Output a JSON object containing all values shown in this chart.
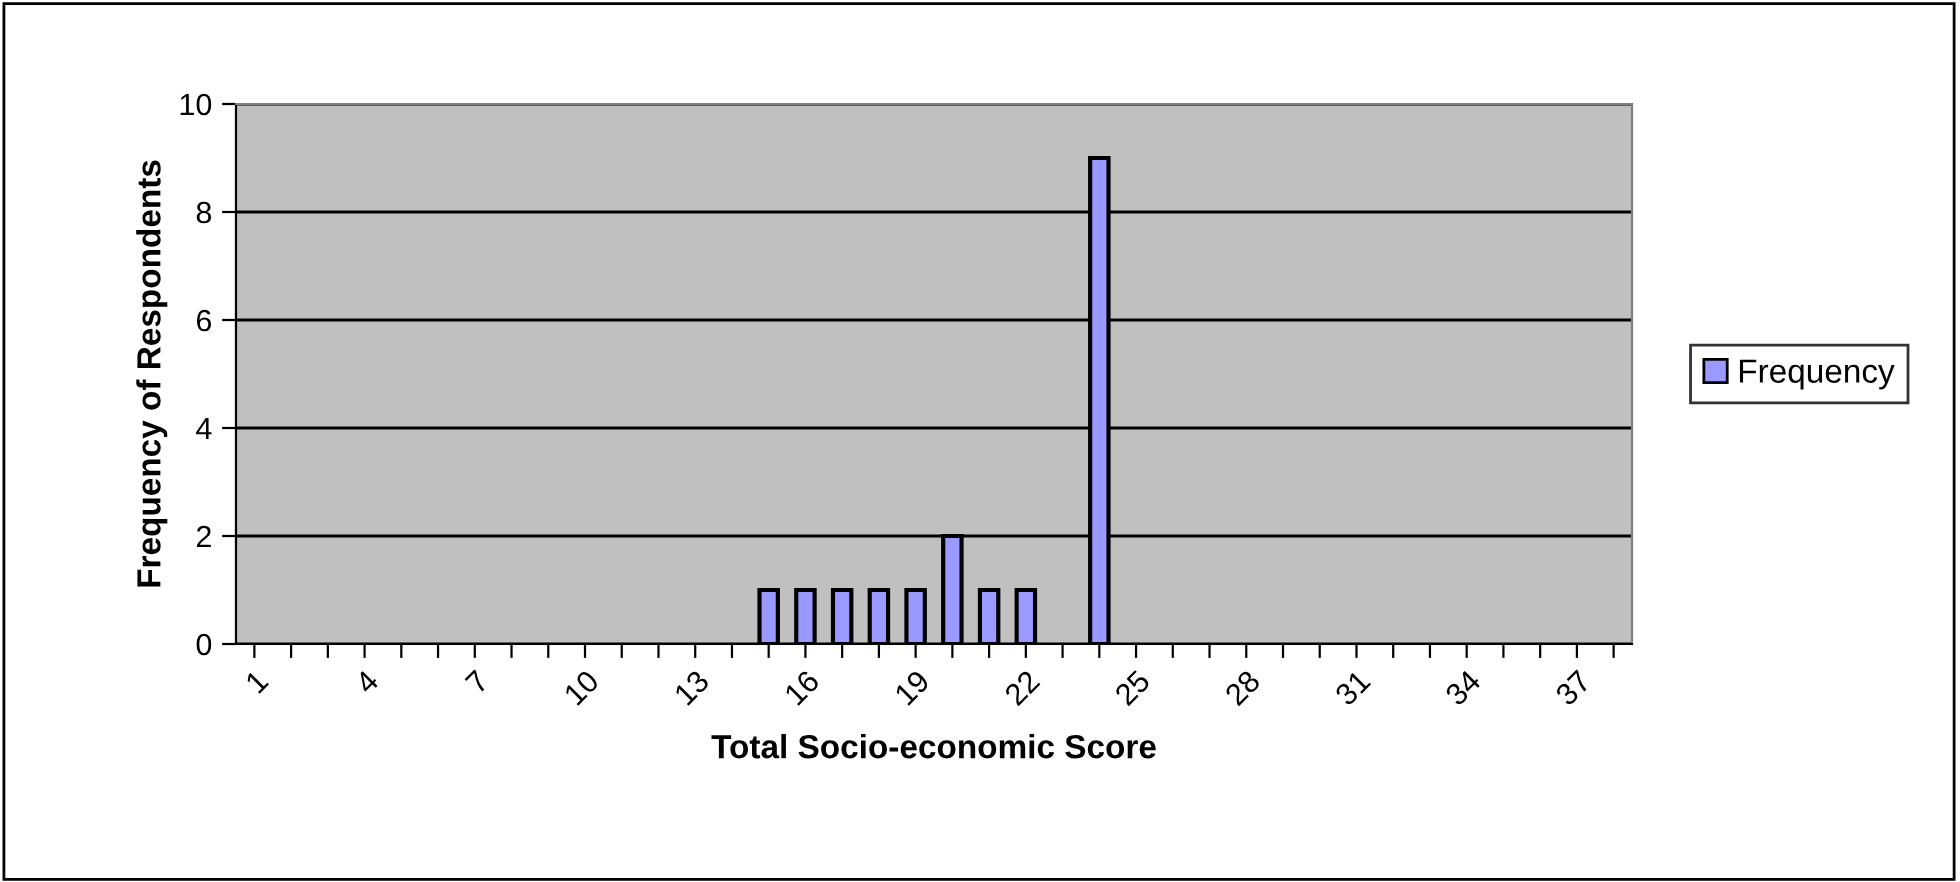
{
  "chart_data": {
    "type": "bar",
    "xlabel": "Total Socio-economic Score",
    "ylabel": "Frequency of Respondents",
    "categories": [
      "1",
      null,
      null,
      "4",
      null,
      null,
      "7",
      null,
      null,
      "10",
      null,
      null,
      "13",
      null,
      null,
      "16",
      null,
      null,
      "19",
      null,
      null,
      "22",
      null,
      null,
      "25",
      null,
      null,
      "28",
      null,
      null,
      "31",
      null,
      null,
      "34",
      null,
      null,
      "37",
      null
    ],
    "series": [
      {
        "name": "Frequency",
        "color": "#9999ff",
        "values": [
          0,
          0,
          0,
          0,
          0,
          0,
          0,
          0,
          0,
          0,
          0,
          0,
          0,
          0,
          1,
          1,
          1,
          1,
          1,
          2,
          1,
          1,
          0,
          9,
          0,
          0,
          0,
          0,
          0,
          0,
          0,
          0,
          0,
          0,
          0,
          0,
          0,
          0
        ]
      }
    ],
    "ylim": [
      0,
      10
    ],
    "yticks": [
      0,
      2,
      4,
      6,
      8,
      10
    ],
    "grid": "y",
    "legend": "right"
  }
}
